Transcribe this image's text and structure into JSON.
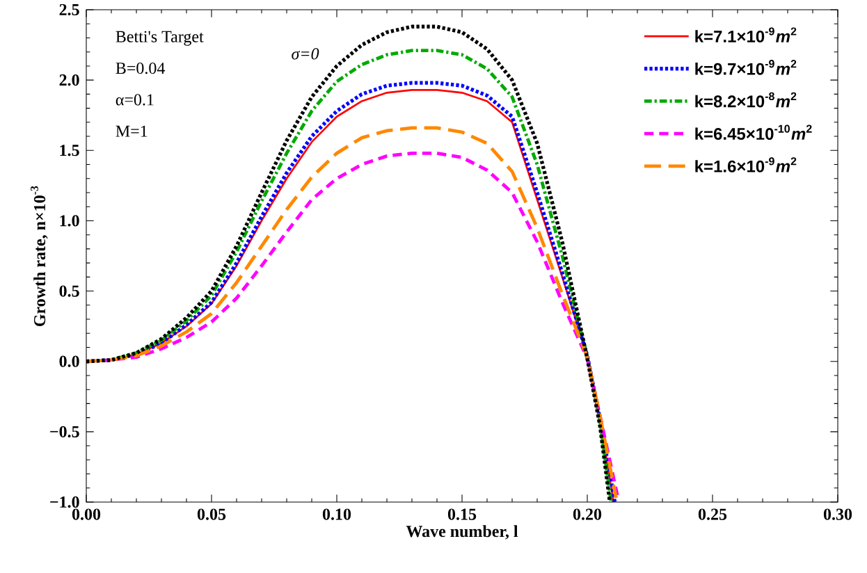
{
  "chart_data": {
    "type": "line",
    "xlabel": "Wave number, l",
    "ylabel": "Growth rate, n×10$^{-3}$",
    "annotations": [
      "Betti's Target",
      "B=0.04",
      "α=0.1",
      "M=1"
    ],
    "xlim": [
      0,
      0.3
    ],
    "ylim": [
      -1,
      2.5
    ],
    "xticks": [
      {
        "value": 0,
        "label": "0.00"
      },
      {
        "value": 0.05,
        "label": "0.05"
      },
      {
        "value": 0.1,
        "label": "0.10"
      },
      {
        "value": 0.15,
        "label": "0.15"
      },
      {
        "value": 0.2,
        "label": "0.20"
      },
      {
        "value": 0.25,
        "label": "0.25"
      },
      {
        "value": 0.3,
        "label": "0.30"
      }
    ],
    "yticks": [
      {
        "value": -1,
        "label": "−1.0"
      },
      {
        "value": -0.5,
        "label": "−0.5"
      },
      {
        "value": 0,
        "label": "0.0"
      },
      {
        "value": 0.5,
        "label": "0.5"
      },
      {
        "value": 1,
        "label": "1.0"
      },
      {
        "value": 1.5,
        "label": "1.5"
      },
      {
        "value": 2,
        "label": "2.0"
      },
      {
        "value": 2.5,
        "label": "2.5"
      }
    ],
    "grid": false,
    "legend": "top right",
    "marker": "none",
    "series": [
      {
        "name": "k=7.1×10$^{-9}$*m*$^{2}$",
        "color": "#ff0000",
        "line_style": "solid",
        "x": [
          0,
          0.01,
          0.02,
          0.03,
          0.04,
          0.05,
          0.06,
          0.07,
          0.08,
          0.09,
          0.1,
          0.11,
          0.12,
          0.13,
          0.14,
          0.15,
          0.16,
          0.17,
          0.18,
          0.19,
          0.2,
          0.205,
          0.2105
        ],
        "values": [
          0,
          0.01,
          0.05,
          0.13,
          0.25,
          0.41,
          0.68,
          1.0,
          1.3,
          1.56,
          1.74,
          1.85,
          1.91,
          1.93,
          1.93,
          1.91,
          1.85,
          1.7,
          1.15,
          0.6,
          0.04,
          -0.4,
          -1.0
        ]
      },
      {
        "name": "k=9.7×10$^{-9}$*m*$^{2}$",
        "color": "#0000ff",
        "line_style": "dotted",
        "x": [
          0,
          0.01,
          0.02,
          0.03,
          0.04,
          0.05,
          0.06,
          0.07,
          0.08,
          0.09,
          0.1,
          0.11,
          0.12,
          0.13,
          0.14,
          0.15,
          0.16,
          0.17,
          0.18,
          0.19,
          0.2,
          0.205,
          0.211
        ],
        "values": [
          0,
          0.01,
          0.05,
          0.13,
          0.26,
          0.42,
          0.7,
          1.03,
          1.34,
          1.6,
          1.78,
          1.9,
          1.96,
          1.98,
          1.98,
          1.96,
          1.89,
          1.74,
          1.2,
          0.63,
          0.04,
          -0.4,
          -1.0
        ]
      },
      {
        "name": "k=8.2×10$^{-8}$*m*$^{2}$",
        "color": "#00aa00",
        "line_style": "dashdot",
        "x": [
          0,
          0.01,
          0.02,
          0.03,
          0.04,
          0.05,
          0.06,
          0.07,
          0.08,
          0.09,
          0.1,
          0.11,
          0.12,
          0.13,
          0.14,
          0.15,
          0.16,
          0.17,
          0.18,
          0.19,
          0.2,
          0.205,
          0.2095
        ],
        "values": [
          0,
          0.01,
          0.06,
          0.15,
          0.29,
          0.47,
          0.78,
          1.14,
          1.48,
          1.78,
          1.99,
          2.11,
          2.18,
          2.21,
          2.21,
          2.18,
          2.08,
          1.88,
          1.4,
          0.75,
          0.03,
          -0.42,
          -1.0
        ]
      },
      {
        "name": "k=6.45×10$^{-10}$*m*$^{2}$",
        "color": "#ff00ff",
        "line_style": "dashed",
        "x": [
          0,
          0.01,
          0.02,
          0.03,
          0.04,
          0.05,
          0.06,
          0.07,
          0.08,
          0.09,
          0.1,
          0.11,
          0.12,
          0.13,
          0.14,
          0.15,
          0.16,
          0.17,
          0.18,
          0.19,
          0.2,
          0.205,
          0.212
        ],
        "values": [
          0,
          0.01,
          0.03,
          0.09,
          0.17,
          0.28,
          0.45,
          0.68,
          0.92,
          1.15,
          1.3,
          1.4,
          1.46,
          1.48,
          1.48,
          1.45,
          1.36,
          1.2,
          0.85,
          0.42,
          0.02,
          -0.38,
          -0.95
        ]
      },
      {
        "name": "k=1.6×10$^{-9}$*m*$^{2}$",
        "color": "#ff8800",
        "line_style": "longdashed",
        "x": [
          0,
          0.01,
          0.02,
          0.03,
          0.04,
          0.05,
          0.06,
          0.07,
          0.08,
          0.09,
          0.1,
          0.11,
          0.12,
          0.13,
          0.14,
          0.15,
          0.16,
          0.17,
          0.18,
          0.19,
          0.2,
          0.205,
          0.2115
        ],
        "values": [
          0,
          0.01,
          0.04,
          0.11,
          0.21,
          0.34,
          0.56,
          0.82,
          1.08,
          1.31,
          1.48,
          1.59,
          1.64,
          1.66,
          1.66,
          1.63,
          1.55,
          1.35,
          0.95,
          0.48,
          0.03,
          -0.38,
          -0.97
        ]
      },
      {
        "name": "σ=0",
        "color": "#000000",
        "line_style": "dotted",
        "x": [
          0,
          0.01,
          0.02,
          0.03,
          0.04,
          0.05,
          0.06,
          0.07,
          0.08,
          0.09,
          0.1,
          0.11,
          0.12,
          0.13,
          0.14,
          0.15,
          0.16,
          0.17,
          0.18,
          0.19,
          0.2,
          0.205,
          0.209
        ],
        "values": [
          0,
          0.01,
          0.06,
          0.16,
          0.31,
          0.5,
          0.82,
          1.2,
          1.57,
          1.88,
          2.1,
          2.25,
          2.34,
          2.38,
          2.38,
          2.34,
          2.22,
          2.0,
          1.55,
          0.85,
          0.02,
          -0.45,
          -1.0
        ]
      }
    ]
  }
}
